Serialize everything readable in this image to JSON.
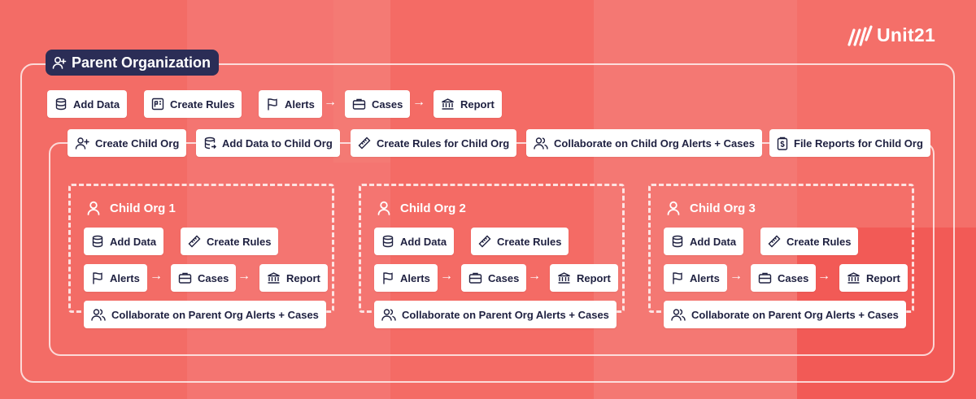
{
  "logo": {
    "text": "Unit21"
  },
  "parent": {
    "title": "Parent Organization",
    "row1": {
      "add_data": "Add Data",
      "create_rules": "Create Rules",
      "alerts": "Alerts",
      "cases": "Cases",
      "report": "Report"
    },
    "row2": {
      "create_child_org": "Create Child Org",
      "add_data_child": "Add Data to Child Org",
      "create_rules_child": "Create Rules for Child Org",
      "collaborate_child": "Collaborate on Child Org Alerts + Cases",
      "file_reports_child": "File Reports for Child Org"
    }
  },
  "children": [
    {
      "title": "Child Org 1",
      "add_data": "Add Data",
      "create_rules": "Create Rules",
      "alerts": "Alerts",
      "cases": "Cases",
      "report": "Report",
      "collaborate": "Collaborate on Parent Org Alerts + Cases"
    },
    {
      "title": "Child Org 2",
      "add_data": "Add Data",
      "create_rules": "Create Rules",
      "alerts": "Alerts",
      "cases": "Cases",
      "report": "Report",
      "collaborate": "Collaborate on Parent Org Alerts + Cases"
    },
    {
      "title": "Child Org 3",
      "add_data": "Add Data",
      "create_rules": "Create Rules",
      "alerts": "Alerts",
      "cases": "Cases",
      "report": "Report",
      "collaborate": "Collaborate on Parent Org Alerts + Cases"
    }
  ],
  "colors": {
    "background": "#f46a64",
    "navy": "#2b2d56",
    "text": "#1e2040",
    "pill": "#ffffff"
  }
}
